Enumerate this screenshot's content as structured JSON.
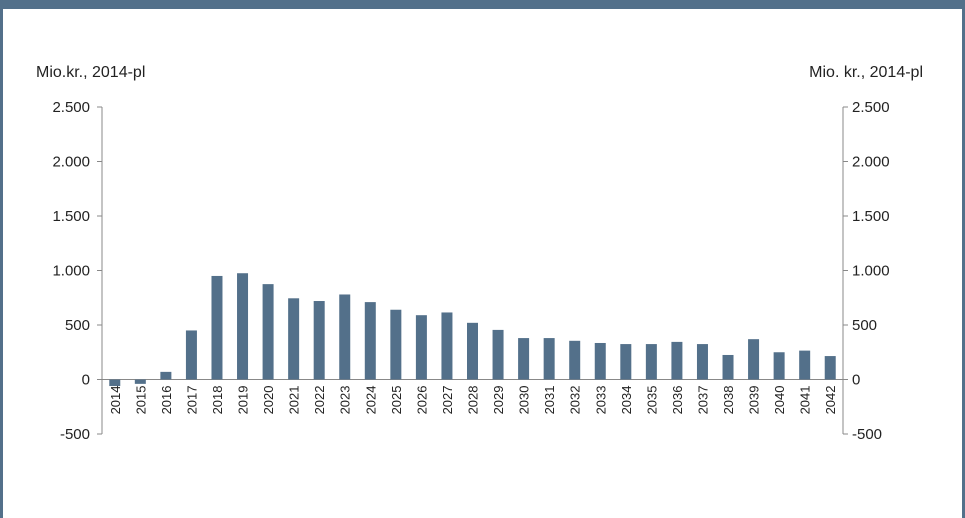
{
  "chart_data": {
    "type": "bar",
    "left_axis_label": "Mio.kr., 2014-pl",
    "right_axis_label": "Mio. kr., 2014-pl",
    "ylim": [
      -500,
      2500
    ],
    "yticks": [
      2500,
      2000,
      1500,
      1000,
      500,
      0,
      -500
    ],
    "ytick_labels": [
      "2.500",
      "2.000",
      "1.500",
      "1.000",
      "500",
      "0",
      "-500"
    ],
    "categories": [
      "2014",
      "2015",
      "2016",
      "2017",
      "2018",
      "2019",
      "2020",
      "2021",
      "2022",
      "2023",
      "2024",
      "2025",
      "2026",
      "2027",
      "2028",
      "2029",
      "2030",
      "2031",
      "2032",
      "2033",
      "2034",
      "2035",
      "2036",
      "2037",
      "2038",
      "2039",
      "2040",
      "2041",
      "2042"
    ],
    "values": [
      -60,
      -40,
      70,
      450,
      950,
      975,
      875,
      745,
      720,
      780,
      710,
      640,
      590,
      615,
      520,
      455,
      380,
      380,
      355,
      335,
      325,
      325,
      345,
      325,
      225,
      370,
      250,
      265,
      215
    ],
    "bar_color": "#53708a",
    "grid": false
  }
}
